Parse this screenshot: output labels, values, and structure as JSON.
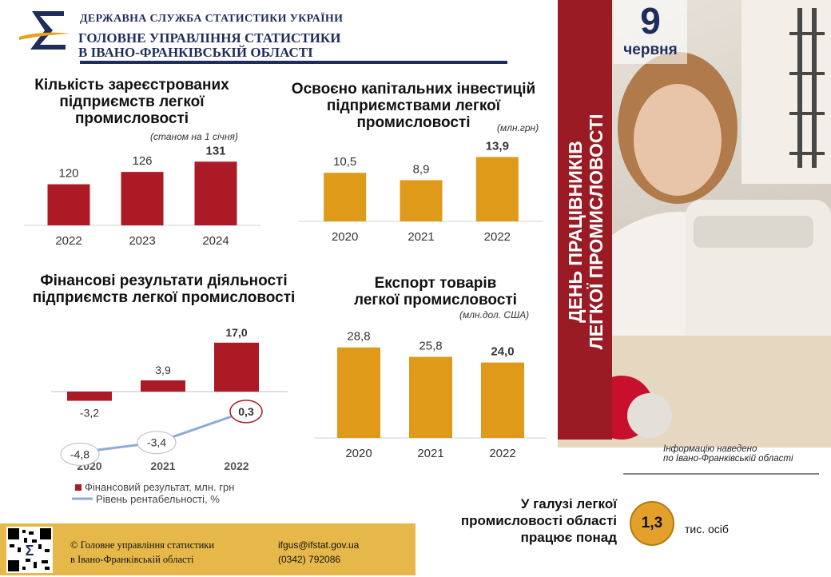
{
  "header": {
    "org": "ДЕРЖАВНА СЛУЖБА СТАТИСТИКИ УКРАЇНИ",
    "dept_line1": "ГОЛОВНЕ УПРАВЛІННЯ СТАТИСТИКИ",
    "dept_line2": "В ІВАНО-ФРАНКІВСЬКІЙ ОБЛАСТІ",
    "logo_symbol": "Σ"
  },
  "banner": {
    "day": "9",
    "month": "червня",
    "vertical_line1": "ДЕНЬ ПРАЦІВНИКІВ",
    "vertical_line2": "ЛЕГКОЇ ПРОМИСЛОВОСТІ",
    "colors": {
      "band": "#9b1b24"
    }
  },
  "note": {
    "line1": "Інформацію наведено",
    "line2": "по Івано-Франківській області"
  },
  "employment": {
    "line1": "У галузі легкої",
    "line2": "промисловості області",
    "line3": "працює понад",
    "value": "1,3",
    "unit": "тис. осіб"
  },
  "footer": {
    "copyright_line1": "© Головне управління статистики",
    "copyright_line2": "в Івано-Франківській області",
    "email": "ifgus@ifstat.gov.ua",
    "phone": "(0342) 792086"
  },
  "chart_data": [
    {
      "id": "enterprises",
      "type": "bar",
      "title_lines": [
        "Кількість зареєстрованих",
        "підприємств легкої",
        "промисловості"
      ],
      "unit": "(станом на 1 січня)",
      "categories": [
        "2022",
        "2023",
        "2024"
      ],
      "values": [
        120,
        126,
        131
      ],
      "labels": [
        "120",
        "126",
        "131"
      ],
      "bold_last": true,
      "ylim": [
        100,
        135
      ],
      "color": "#ab1a25"
    },
    {
      "id": "investments",
      "type": "bar",
      "title_lines": [
        "Освоєно капітальних інвестицій",
        "підприємствами легкої",
        "промисловості"
      ],
      "unit": "(млн.грн)",
      "categories": [
        "2020",
        "2021",
        "2022"
      ],
      "values": [
        10.5,
        8.9,
        13.9
      ],
      "labels": [
        "10,5",
        "8,9",
        "13,9"
      ],
      "bold_last": true,
      "ylim": [
        0,
        14.5
      ],
      "color": "#e09a1a"
    },
    {
      "id": "financial",
      "type": "bar",
      "title_lines": [
        "Фінансові результати діяльності",
        "підприємств легкої промисловості"
      ],
      "categories": [
        "2020",
        "2021",
        "2022"
      ],
      "series": [
        {
          "name": "Фінансовий результат, млн. грн",
          "type": "bar",
          "values": [
            -3.2,
            3.9,
            17.0
          ],
          "labels": [
            "-3,2",
            "3,9",
            "17,0"
          ],
          "color": "#ab1a25"
        },
        {
          "name": "Рівень рентабельності, %",
          "type": "line",
          "values": [
            -4.8,
            -3.4,
            0.3
          ],
          "labels": [
            "-4,8",
            "-3,4",
            "0,3"
          ],
          "color": "#8eaadb"
        }
      ],
      "legend": "bottom"
    },
    {
      "id": "export",
      "type": "bar",
      "title_lines": [
        "Експорт товарів",
        "легкої промисловості"
      ],
      "unit": "(млн.дол. США)",
      "categories": [
        "2020",
        "2021",
        "2022"
      ],
      "values": [
        28.8,
        25.8,
        24.0
      ],
      "labels": [
        "28,8",
        "25,8",
        "24,0"
      ],
      "bold_last": true,
      "ylim": [
        0,
        30
      ],
      "color": "#e09a1a"
    }
  ]
}
